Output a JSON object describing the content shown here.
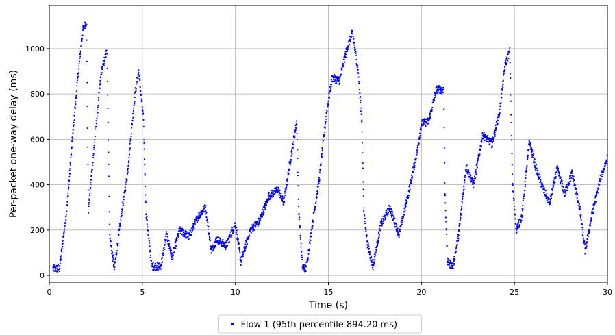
{
  "chart_data": {
    "type": "scatter",
    "xlabel": "Time (s)",
    "ylabel": "Per-packet one-way delay (ms)",
    "xlim": [
      0,
      30
    ],
    "ylim": [
      -30,
      1190
    ],
    "x_ticks": [
      0,
      5,
      10,
      15,
      20,
      25,
      30
    ],
    "y_ticks": [
      0,
      200,
      400,
      600,
      800,
      1000
    ],
    "grid": true,
    "legend": {
      "placement": "bottom-center",
      "entries": [
        "Flow 1 (95th percentile 894.20 ms)"
      ]
    },
    "series": [
      {
        "name": "Flow 1 (95th percentile 894.20 ms)",
        "color": "#0000ff",
        "marker": "dot",
        "anchors": [
          [
            0.2,
            30
          ],
          [
            0.55,
            30
          ],
          [
            0.8,
            200
          ],
          [
            0.95,
            300
          ],
          [
            1.2,
            560
          ],
          [
            1.5,
            850
          ],
          [
            1.8,
            1080
          ],
          [
            2.0,
            1120
          ],
          [
            2.1,
            290
          ],
          [
            2.5,
            650
          ],
          [
            2.8,
            900
          ],
          [
            3.1,
            990
          ],
          [
            3.25,
            170
          ],
          [
            3.5,
            30
          ],
          [
            3.9,
            280
          ],
          [
            4.2,
            450
          ],
          [
            4.6,
            800
          ],
          [
            4.8,
            900
          ],
          [
            5.05,
            700
          ],
          [
            5.2,
            280
          ],
          [
            5.5,
            40
          ],
          [
            6.0,
            40
          ],
          [
            6.3,
            180
          ],
          [
            6.6,
            80
          ],
          [
            7.0,
            200
          ],
          [
            7.5,
            170
          ],
          [
            8.0,
            260
          ],
          [
            8.4,
            300
          ],
          [
            8.7,
            110
          ],
          [
            9.0,
            160
          ],
          [
            9.5,
            130
          ],
          [
            10.0,
            230
          ],
          [
            10.3,
            60
          ],
          [
            10.8,
            200
          ],
          [
            11.3,
            240
          ],
          [
            11.8,
            350
          ],
          [
            12.3,
            380
          ],
          [
            12.6,
            320
          ],
          [
            12.9,
            480
          ],
          [
            13.3,
            680
          ],
          [
            13.4,
            300
          ],
          [
            13.6,
            40
          ],
          [
            13.8,
            30
          ],
          [
            14.2,
            260
          ],
          [
            14.5,
            420
          ],
          [
            14.9,
            720
          ],
          [
            15.2,
            870
          ],
          [
            15.6,
            860
          ],
          [
            16.0,
            1000
          ],
          [
            16.3,
            1070
          ],
          [
            16.6,
            900
          ],
          [
            16.8,
            680
          ],
          [
            16.9,
            290
          ],
          [
            17.1,
            140
          ],
          [
            17.4,
            40
          ],
          [
            17.8,
            220
          ],
          [
            18.3,
            300
          ],
          [
            18.8,
            180
          ],
          [
            19.3,
            360
          ],
          [
            19.8,
            560
          ],
          [
            20.0,
            670
          ],
          [
            20.4,
            680
          ],
          [
            20.8,
            820
          ],
          [
            21.2,
            820
          ],
          [
            21.25,
            400
          ],
          [
            21.4,
            60
          ],
          [
            21.7,
            40
          ],
          [
            22.0,
            180
          ],
          [
            22.4,
            480
          ],
          [
            22.8,
            400
          ],
          [
            23.3,
            620
          ],
          [
            23.8,
            580
          ],
          [
            24.2,
            720
          ],
          [
            24.5,
            930
          ],
          [
            24.75,
            990
          ],
          [
            24.9,
            400
          ],
          [
            25.1,
            200
          ],
          [
            25.4,
            260
          ],
          [
            25.8,
            590
          ],
          [
            26.2,
            460
          ],
          [
            26.6,
            370
          ],
          [
            26.9,
            320
          ],
          [
            27.3,
            470
          ],
          [
            27.7,
            360
          ],
          [
            28.1,
            450
          ],
          [
            28.5,
            300
          ],
          [
            28.8,
            110
          ],
          [
            29.2,
            280
          ],
          [
            29.6,
            420
          ],
          [
            30.0,
            520
          ]
        ]
      }
    ]
  }
}
